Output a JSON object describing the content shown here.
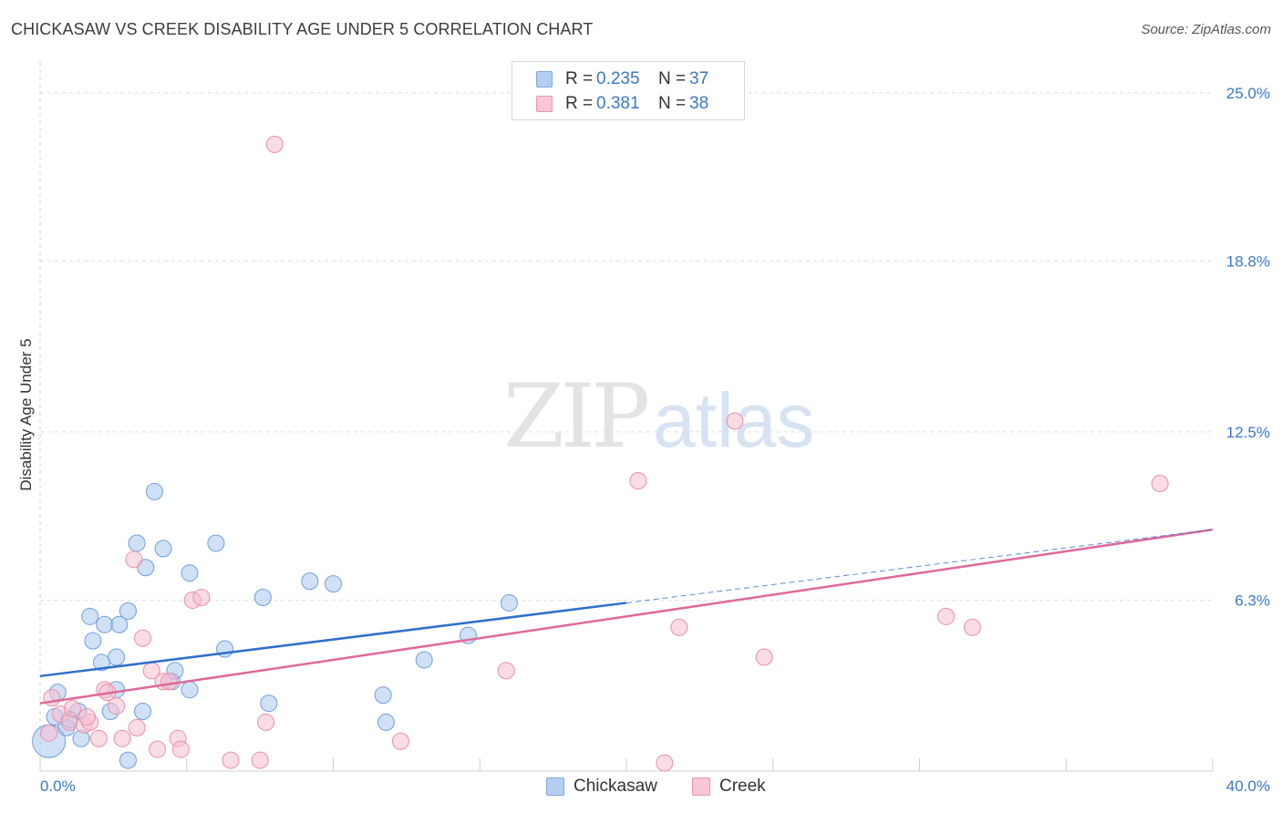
{
  "title": "CHICKASAW VS CREEK DISABILITY AGE UNDER 5 CORRELATION CHART",
  "source": "Source: ZipAtlas.com",
  "watermark": {
    "zip": "ZIP",
    "atlas": "atlas"
  },
  "legend": {
    "rows": [
      {
        "r_label": "R =",
        "r_value": "0.235",
        "n_label": "N =",
        "n_value": "37"
      },
      {
        "r_label": "R =",
        "r_value": "0.381",
        "n_label": "N =",
        "n_value": "38"
      }
    ]
  },
  "colors": {
    "chickasaw_fill": "#a9c8ef",
    "chickasaw_stroke": "#6f9fd8",
    "chickasaw_line": "#2f72c9",
    "creek_fill": "#f6bfd0",
    "creek_stroke": "#e88fab",
    "creek_line": "#e0689a",
    "tick_label": "#3a78c9",
    "grid": "#dedede"
  },
  "chart_data": {
    "type": "scatter",
    "title": "CHICKASAW VS CREEK DISABILITY AGE UNDER 5 CORRELATION CHART",
    "xlabel": "",
    "ylabel": "Disability Age Under 5",
    "xlim": [
      0,
      40
    ],
    "ylim": [
      0,
      25.8
    ],
    "x_tick_labels": [
      "0.0%",
      "40.0%"
    ],
    "y_ticks": [
      6.3,
      12.5,
      18.8,
      25.0
    ],
    "y_tick_labels": [
      "6.3%",
      "12.5%",
      "18.8%",
      "25.0%"
    ],
    "grid": true,
    "legend_position": "bottom-center",
    "series": [
      {
        "name": "Chickasaw",
        "r": 0.235,
        "n": 37,
        "trend": {
          "x": [
            0,
            20
          ],
          "y": [
            3.5,
            6.2
          ]
        },
        "trend_extended": {
          "x": [
            20,
            40
          ],
          "y": [
            6.2,
            8.9
          ]
        },
        "points": [
          [
            0.5,
            2.0,
            1
          ],
          [
            0.3,
            1.1,
            3
          ],
          [
            0.9,
            1.6,
            1
          ],
          [
            1.3,
            2.2,
            1
          ],
          [
            1.7,
            5.7,
            1
          ],
          [
            1.8,
            4.8,
            1
          ],
          [
            2.1,
            4.0,
            1
          ],
          [
            2.2,
            5.4,
            1
          ],
          [
            2.4,
            2.2,
            1
          ],
          [
            2.6,
            3.0,
            1
          ],
          [
            2.6,
            4.2,
            1
          ],
          [
            2.7,
            5.4,
            1
          ],
          [
            3.0,
            5.9,
            1
          ],
          [
            3.3,
            8.4,
            1
          ],
          [
            3.5,
            2.2,
            1
          ],
          [
            3.6,
            7.5,
            1
          ],
          [
            3.9,
            10.3,
            1
          ],
          [
            4.2,
            8.2,
            1
          ],
          [
            4.5,
            3.3,
            1
          ],
          [
            4.6,
            3.7,
            1
          ],
          [
            5.1,
            3.0,
            1
          ],
          [
            5.1,
            7.3,
            1
          ],
          [
            6.0,
            8.4,
            1
          ],
          [
            6.3,
            4.5,
            1
          ],
          [
            7.6,
            6.4,
            1
          ],
          [
            7.8,
            2.5,
            1
          ],
          [
            9.2,
            7.0,
            1
          ],
          [
            10.0,
            6.9,
            1
          ],
          [
            11.7,
            2.8,
            1
          ],
          [
            11.8,
            1.8,
            1
          ],
          [
            13.1,
            4.1,
            1
          ],
          [
            14.6,
            5.0,
            1
          ],
          [
            16.0,
            6.2,
            1
          ],
          [
            3.0,
            0.4,
            1
          ],
          [
            1.4,
            1.2,
            1
          ],
          [
            0.6,
            2.9,
            1
          ],
          [
            1.0,
            1.9,
            1
          ]
        ]
      },
      {
        "name": "Creek",
        "r": 0.381,
        "n": 38,
        "trend": {
          "x": [
            0,
            40
          ],
          "y": [
            2.5,
            8.9
          ]
        },
        "points": [
          [
            0.4,
            2.7,
            1
          ],
          [
            0.7,
            2.1,
            1
          ],
          [
            1.0,
            1.8,
            1
          ],
          [
            1.1,
            2.3,
            1
          ],
          [
            1.5,
            1.7,
            1
          ],
          [
            1.7,
            1.8,
            1
          ],
          [
            2.0,
            1.2,
            1
          ],
          [
            2.2,
            3.0,
            1
          ],
          [
            2.3,
            2.9,
            1
          ],
          [
            2.6,
            2.4,
            1
          ],
          [
            2.8,
            1.2,
            1
          ],
          [
            3.2,
            7.8,
            1
          ],
          [
            3.3,
            1.6,
            1
          ],
          [
            3.5,
            4.9,
            1
          ],
          [
            3.8,
            3.7,
            1
          ],
          [
            4.0,
            0.8,
            1
          ],
          [
            4.2,
            3.3,
            1
          ],
          [
            4.4,
            3.3,
            1
          ],
          [
            4.7,
            1.2,
            1
          ],
          [
            4.8,
            0.8,
            1
          ],
          [
            5.2,
            6.3,
            1
          ],
          [
            5.5,
            6.4,
            1
          ],
          [
            6.5,
            0.4,
            1
          ],
          [
            7.5,
            0.4,
            1
          ],
          [
            7.7,
            1.8,
            1
          ],
          [
            8.0,
            23.1,
            1
          ],
          [
            12.3,
            1.1,
            1
          ],
          [
            15.9,
            3.7,
            1
          ],
          [
            20.4,
            10.7,
            1
          ],
          [
            21.3,
            0.3,
            1
          ],
          [
            21.8,
            5.3,
            1
          ],
          [
            23.7,
            12.9,
            1
          ],
          [
            24.7,
            4.2,
            1
          ],
          [
            30.9,
            5.7,
            1
          ],
          [
            31.8,
            5.3,
            1
          ],
          [
            38.2,
            10.6,
            1
          ],
          [
            1.6,
            2.0,
            1
          ],
          [
            0.3,
            1.4,
            1
          ]
        ]
      }
    ]
  },
  "bottom_legend": {
    "items": [
      "Chickasaw",
      "Creek"
    ]
  }
}
